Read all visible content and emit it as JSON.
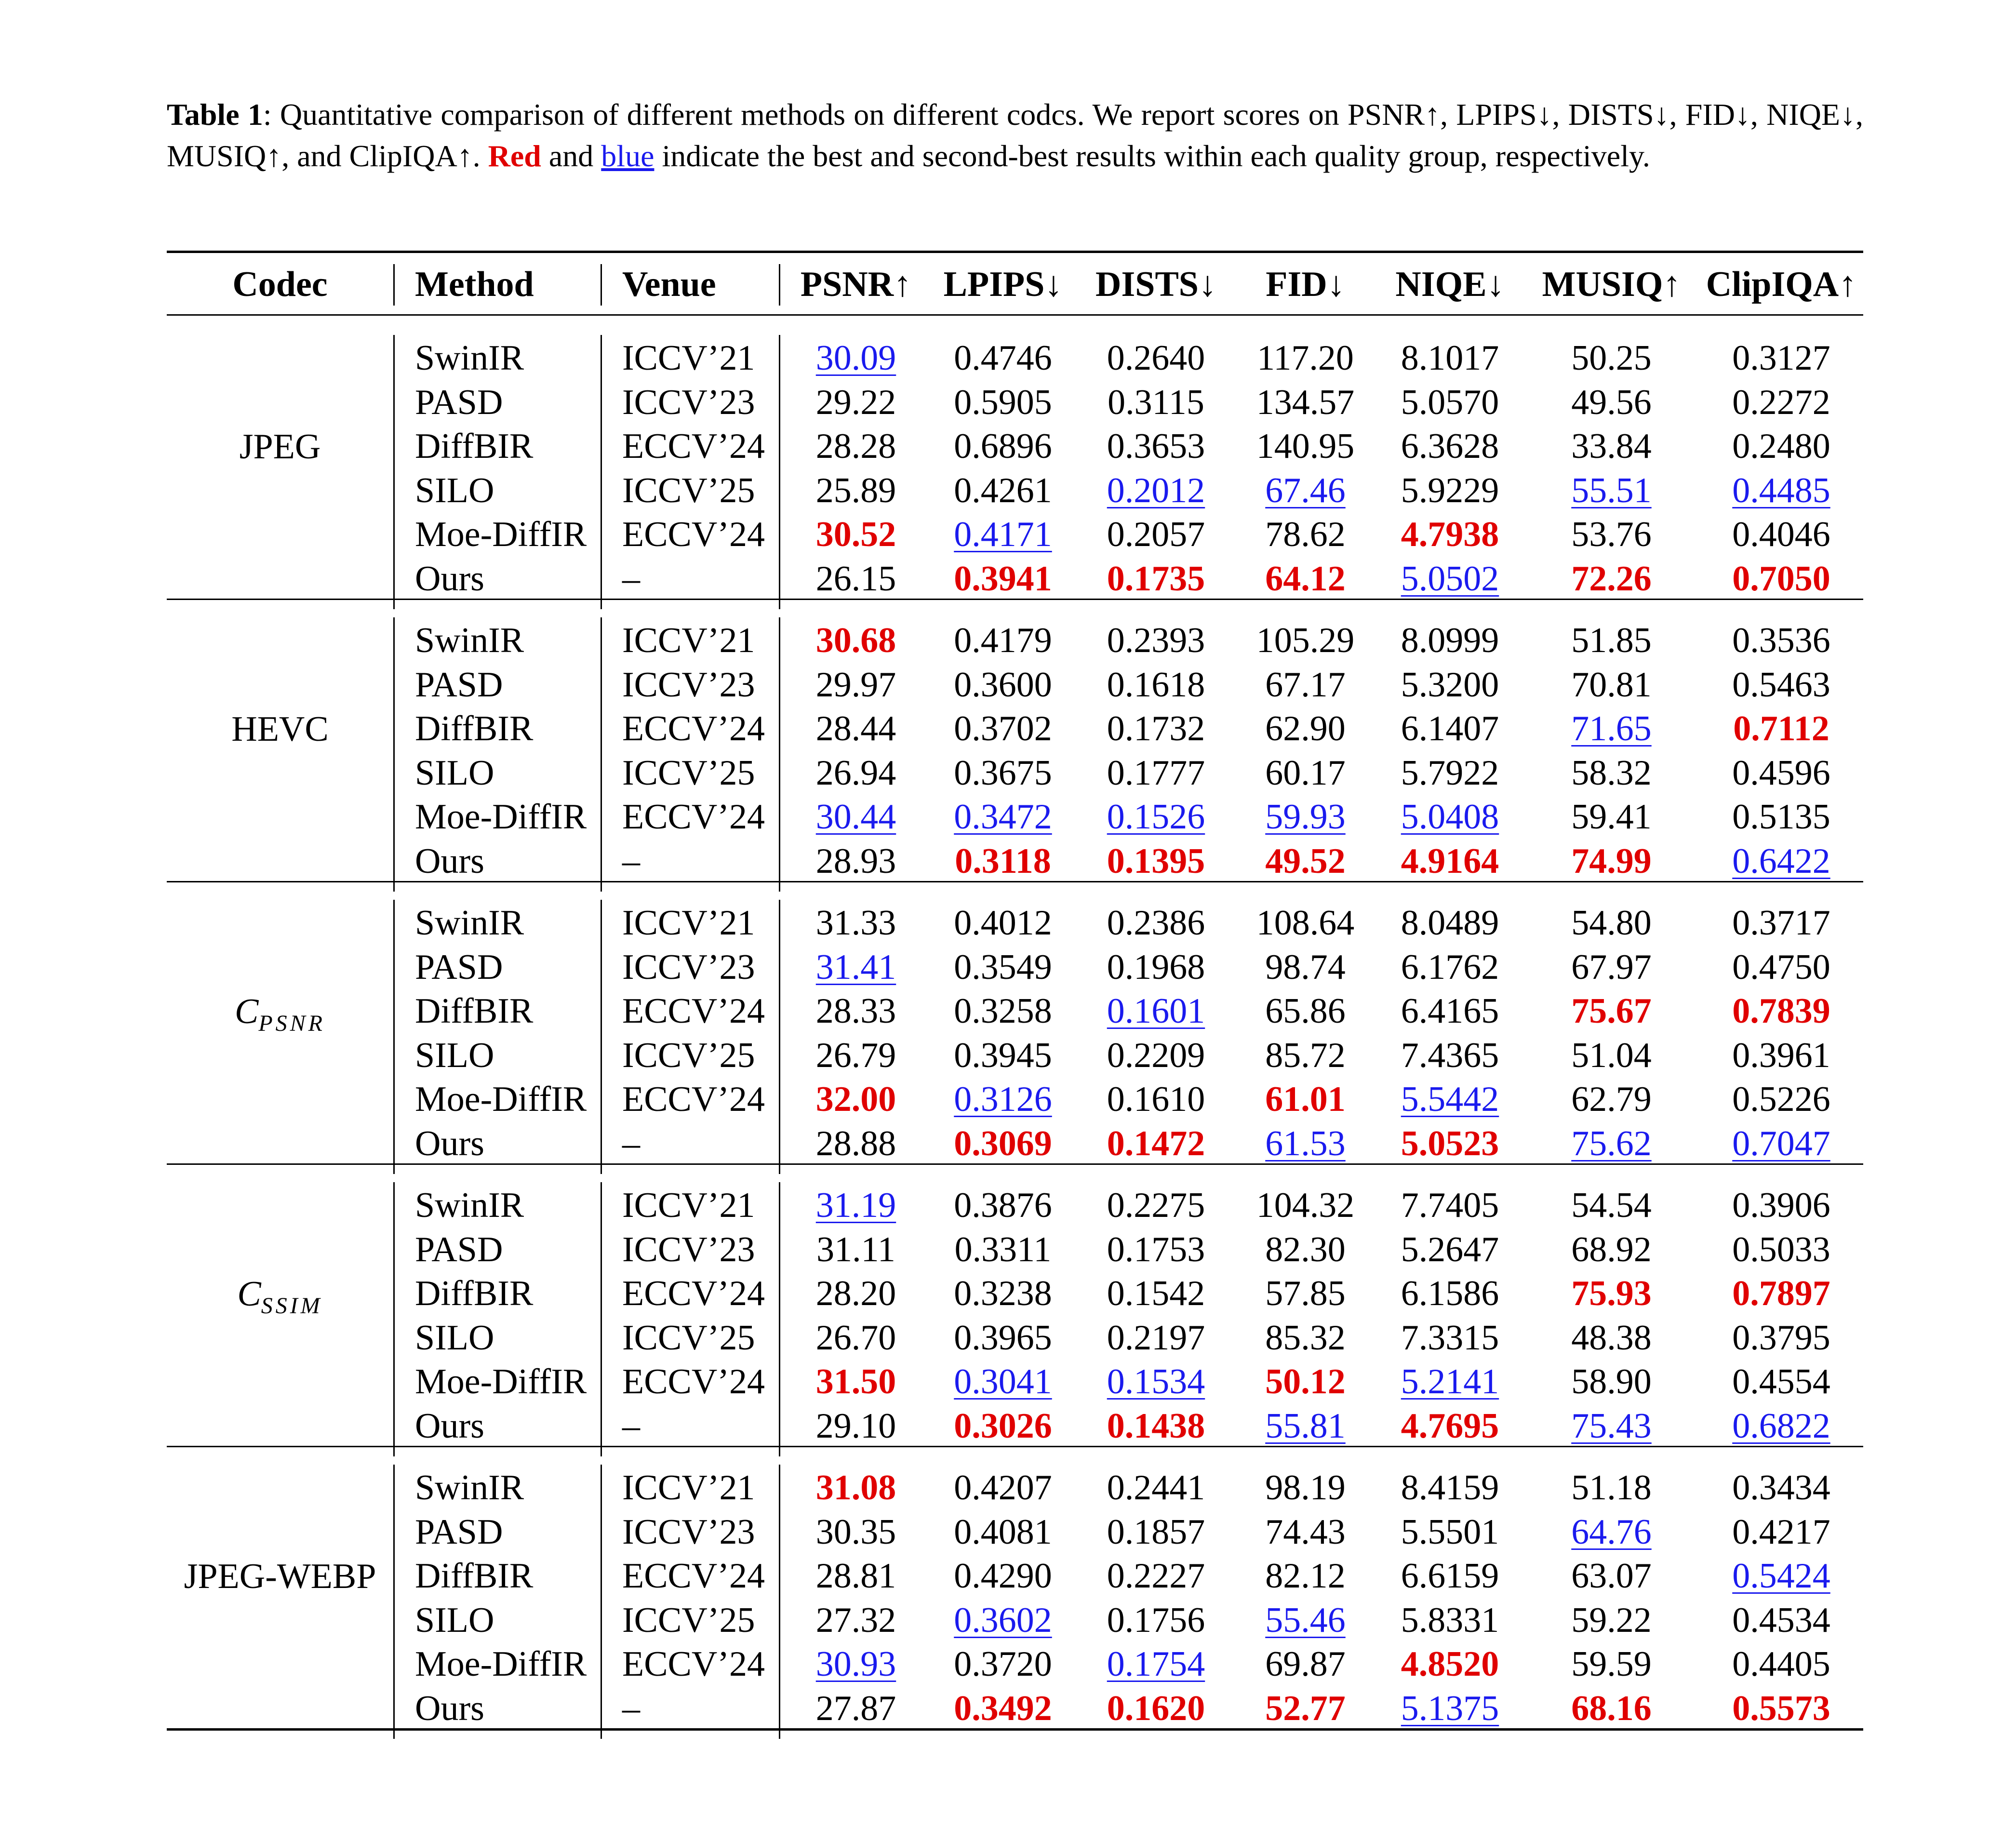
{
  "caption": {
    "label": "Table 1",
    "text_1": ": Quantitative comparison of different methods on different codcs.  We report scores on PSNR↑, LPIPS↓, DISTS↓, FID↓, NIQE↓, MUSIQ↑, and ClipIQA↑. ",
    "red_word": "Red",
    "text_2": " and ",
    "blue_word": "blue",
    "text_3": " indicate the best and second-best results within each quality group, respectively."
  },
  "table": {
    "headers": [
      "Codec",
      "Method",
      "Venue",
      "PSNR↑",
      "LPIPS↓",
      "DISTS↓",
      "FID↓",
      "NIQE↓",
      "MUSIQ↑",
      "ClipIQA↑"
    ],
    "groups": [
      {
        "codec": "JPEG",
        "codec_main": "",
        "codec_sub": "",
        "rows": [
          {
            "method": "SwinIR",
            "venue": "ICCV’21",
            "values": [
              "30.09",
              "0.4746",
              "0.2640",
              "117.20",
              "8.1017",
              "50.25",
              "0.3127"
            ],
            "marks": [
              "second",
              "",
              "",
              "",
              "",
              "",
              ""
            ]
          },
          {
            "method": "PASD",
            "venue": "ICCV’23",
            "values": [
              "29.22",
              "0.5905",
              "0.3115",
              "134.57",
              "5.0570",
              "49.56",
              "0.2272"
            ],
            "marks": [
              "",
              "",
              "",
              "",
              "",
              "",
              ""
            ]
          },
          {
            "method": "DiffBIR",
            "venue": "ECCV’24",
            "values": [
              "28.28",
              "0.6896",
              "0.3653",
              "140.95",
              "6.3628",
              "33.84",
              "0.2480"
            ],
            "marks": [
              "",
              "",
              "",
              "",
              "",
              "",
              ""
            ]
          },
          {
            "method": "SILO",
            "venue": "ICCV’25",
            "values": [
              "25.89",
              "0.4261",
              "0.2012",
              "67.46",
              "5.9229",
              "55.51",
              "0.4485"
            ],
            "marks": [
              "",
              "",
              "second",
              "second",
              "",
              "second",
              "second"
            ]
          },
          {
            "method": "Moe-DiffIR",
            "venue": "ECCV’24",
            "values": [
              "30.52",
              "0.4171",
              "0.2057",
              "78.62",
              "4.7938",
              "53.76",
              "0.4046"
            ],
            "marks": [
              "best",
              "second",
              "",
              "",
              "best",
              "",
              ""
            ]
          },
          {
            "method": "Ours",
            "venue": "–",
            "values": [
              "26.15",
              "0.3941",
              "0.1735",
              "64.12",
              "5.0502",
              "72.26",
              "0.7050"
            ],
            "marks": [
              "",
              "best",
              "best",
              "best",
              "second",
              "best",
              "best"
            ]
          }
        ]
      },
      {
        "codec": "HEVC",
        "codec_main": "",
        "codec_sub": "",
        "rows": [
          {
            "method": "SwinIR",
            "venue": "ICCV’21",
            "values": [
              "30.68",
              "0.4179",
              "0.2393",
              "105.29",
              "8.0999",
              "51.85",
              "0.3536"
            ],
            "marks": [
              "best",
              "",
              "",
              "",
              "",
              "",
              ""
            ]
          },
          {
            "method": "PASD",
            "venue": "ICCV’23",
            "values": [
              "29.97",
              "0.3600",
              "0.1618",
              "67.17",
              "5.3200",
              "70.81",
              "0.5463"
            ],
            "marks": [
              "",
              "",
              "",
              "",
              "",
              "",
              ""
            ]
          },
          {
            "method": "DiffBIR",
            "venue": "ECCV’24",
            "values": [
              "28.44",
              "0.3702",
              "0.1732",
              "62.90",
              "6.1407",
              "71.65",
              "0.7112"
            ],
            "marks": [
              "",
              "",
              "",
              "",
              "",
              "second",
              "best"
            ]
          },
          {
            "method": "SILO",
            "venue": "ICCV’25",
            "values": [
              "26.94",
              "0.3675",
              "0.1777",
              "60.17",
              "5.7922",
              "58.32",
              "0.4596"
            ],
            "marks": [
              "",
              "",
              "",
              "",
              "",
              "",
              ""
            ]
          },
          {
            "method": "Moe-DiffIR",
            "venue": "ECCV’24",
            "values": [
              "30.44",
              "0.3472",
              "0.1526",
              "59.93",
              "5.0408",
              "59.41",
              "0.5135"
            ],
            "marks": [
              "second",
              "second",
              "second",
              "second",
              "second",
              "",
              ""
            ]
          },
          {
            "method": "Ours",
            "venue": "–",
            "values": [
              "28.93",
              "0.3118",
              "0.1395",
              "49.52",
              "4.9164",
              "74.99",
              "0.6422"
            ],
            "marks": [
              "",
              "best",
              "best",
              "best",
              "best",
              "best",
              "second"
            ]
          }
        ]
      },
      {
        "codec": "",
        "codec_main": "C",
        "codec_sub": "PSNR",
        "rows": [
          {
            "method": "SwinIR",
            "venue": "ICCV’21",
            "values": [
              "31.33",
              "0.4012",
              "0.2386",
              "108.64",
              "8.0489",
              "54.80",
              "0.3717"
            ],
            "marks": [
              "",
              "",
              "",
              "",
              "",
              "",
              ""
            ]
          },
          {
            "method": "PASD",
            "venue": "ICCV’23",
            "values": [
              "31.41",
              "0.3549",
              "0.1968",
              "98.74",
              "6.1762",
              "67.97",
              "0.4750"
            ],
            "marks": [
              "second",
              "",
              "",
              "",
              "",
              "",
              ""
            ]
          },
          {
            "method": "DiffBIR",
            "venue": "ECCV’24",
            "values": [
              "28.33",
              "0.3258",
              "0.1601",
              "65.86",
              "6.4165",
              "75.67",
              "0.7839"
            ],
            "marks": [
              "",
              "",
              "second",
              "",
              "",
              "best",
              "best"
            ]
          },
          {
            "method": "SILO",
            "venue": "ICCV’25",
            "values": [
              "26.79",
              "0.3945",
              "0.2209",
              "85.72",
              "7.4365",
              "51.04",
              "0.3961"
            ],
            "marks": [
              "",
              "",
              "",
              "",
              "",
              "",
              ""
            ]
          },
          {
            "method": "Moe-DiffIR",
            "venue": "ECCV’24",
            "values": [
              "32.00",
              "0.3126",
              "0.1610",
              "61.01",
              "5.5442",
              "62.79",
              "0.5226"
            ],
            "marks": [
              "best",
              "second",
              "",
              "best",
              "second",
              "",
              ""
            ]
          },
          {
            "method": "Ours",
            "venue": "–",
            "values": [
              "28.88",
              "0.3069",
              "0.1472",
              "61.53",
              "5.0523",
              "75.62",
              "0.7047"
            ],
            "marks": [
              "",
              "best",
              "best",
              "second",
              "best",
              "second",
              "second"
            ]
          }
        ]
      },
      {
        "codec": "",
        "codec_main": "C",
        "codec_sub": "SSIM",
        "rows": [
          {
            "method": "SwinIR",
            "venue": "ICCV’21",
            "values": [
              "31.19",
              "0.3876",
              "0.2275",
              "104.32",
              "7.7405",
              "54.54",
              "0.3906"
            ],
            "marks": [
              "second",
              "",
              "",
              "",
              "",
              "",
              ""
            ]
          },
          {
            "method": "PASD",
            "venue": "ICCV’23",
            "values": [
              "31.11",
              "0.3311",
              "0.1753",
              "82.30",
              "5.2647",
              "68.92",
              "0.5033"
            ],
            "marks": [
              "",
              "",
              "",
              "",
              "",
              "",
              ""
            ]
          },
          {
            "method": "DiffBIR",
            "venue": "ECCV’24",
            "values": [
              "28.20",
              "0.3238",
              "0.1542",
              "57.85",
              "6.1586",
              "75.93",
              "0.7897"
            ],
            "marks": [
              "",
              "",
              "",
              "",
              "",
              "best",
              "best"
            ]
          },
          {
            "method": "SILO",
            "venue": "ICCV’25",
            "values": [
              "26.70",
              "0.3965",
              "0.2197",
              "85.32",
              "7.3315",
              "48.38",
              "0.3795"
            ],
            "marks": [
              "",
              "",
              "",
              "",
              "",
              "",
              ""
            ]
          },
          {
            "method": "Moe-DiffIR",
            "venue": "ECCV’24",
            "values": [
              "31.50",
              "0.3041",
              "0.1534",
              "50.12",
              "5.2141",
              "58.90",
              "0.4554"
            ],
            "marks": [
              "best",
              "second",
              "second",
              "best",
              "second",
              "",
              ""
            ]
          },
          {
            "method": "Ours",
            "venue": "–",
            "values": [
              "29.10",
              "0.3026",
              "0.1438",
              "55.81",
              "4.7695",
              "75.43",
              "0.6822"
            ],
            "marks": [
              "",
              "best",
              "best",
              "second",
              "best",
              "second",
              "second"
            ]
          }
        ]
      },
      {
        "codec": "JPEG-WEBP",
        "codec_main": "",
        "codec_sub": "",
        "rows": [
          {
            "method": "SwinIR",
            "venue": "ICCV’21",
            "values": [
              "31.08",
              "0.4207",
              "0.2441",
              "98.19",
              "8.4159",
              "51.18",
              "0.3434"
            ],
            "marks": [
              "best",
              "",
              "",
              "",
              "",
              "",
              ""
            ]
          },
          {
            "method": "PASD",
            "venue": "ICCV’23",
            "values": [
              "30.35",
              "0.4081",
              "0.1857",
              "74.43",
              "5.5501",
              "64.76",
              "0.4217"
            ],
            "marks": [
              "",
              "",
              "",
              "",
              "",
              "second",
              ""
            ]
          },
          {
            "method": "DiffBIR",
            "venue": "ECCV’24",
            "values": [
              "28.81",
              "0.4290",
              "0.2227",
              "82.12",
              "6.6159",
              "63.07",
              "0.5424"
            ],
            "marks": [
              "",
              "",
              "",
              "",
              "",
              "",
              "second"
            ]
          },
          {
            "method": "SILO",
            "venue": "ICCV’25",
            "values": [
              "27.32",
              "0.3602",
              "0.1756",
              "55.46",
              "5.8331",
              "59.22",
              "0.4534"
            ],
            "marks": [
              "",
              "second",
              "",
              "second",
              "",
              "",
              ""
            ]
          },
          {
            "method": "Moe-DiffIR",
            "venue": "ECCV’24",
            "values": [
              "30.93",
              "0.3720",
              "0.1754",
              "69.87",
              "4.8520",
              "59.59",
              "0.4405"
            ],
            "marks": [
              "second",
              "",
              "second",
              "",
              "best",
              "",
              ""
            ]
          },
          {
            "method": "Ours",
            "venue": "–",
            "values": [
              "27.87",
              "0.3492",
              "0.1620",
              "52.77",
              "5.1375",
              "68.16",
              "0.5573"
            ],
            "marks": [
              "",
              "best",
              "best",
              "best",
              "second",
              "best",
              "best"
            ]
          }
        ]
      }
    ]
  },
  "colors": {
    "best": "#e00000",
    "second": "#1a1aee"
  }
}
